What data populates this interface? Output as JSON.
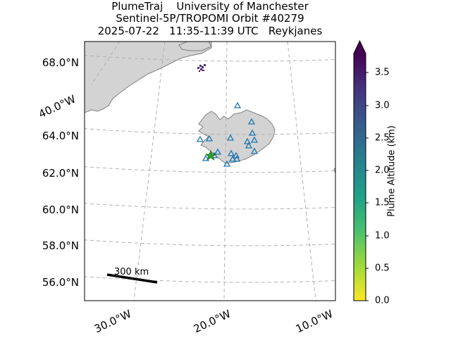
{
  "header": {
    "line1": "PlumeTraj    University of Manchester",
    "line2": "Sentinel-5P/TROPOMI Orbit #40279",
    "line3": "2025-07-22   11:35-11:39 UTC   Reykjanes"
  },
  "lat_labels": [
    "68.0°N",
    "64.0°N",
    "62.0°N",
    "60.0°N",
    "58.0°N",
    "56.0°N"
  ],
  "lon_labels": [
    "40.0°W",
    "30.0°W",
    "20.0°W",
    "10.0°W"
  ],
  "scalebar": {
    "label": "300 km"
  },
  "colorbar": {
    "label": "Plume Altitude (km)",
    "ticks": [
      "0.0",
      "0.5",
      "1.0",
      "1.5",
      "2.0",
      "2.5",
      "3.0",
      "3.5"
    ],
    "min": 0.0,
    "max": 3.8,
    "colormap": "viridis_r",
    "colors": [
      "#fde725",
      "#a0da39",
      "#4ac16d",
      "#1fa187",
      "#277f8e",
      "#365c8d",
      "#46327e",
      "#440154"
    ]
  },
  "colors": {
    "land": "#d3d3d3",
    "coastline": "#808080",
    "gridline": "#b0b0b0",
    "volcano_marker": "#1f77b4",
    "source_star": "#2ca02c"
  }
}
